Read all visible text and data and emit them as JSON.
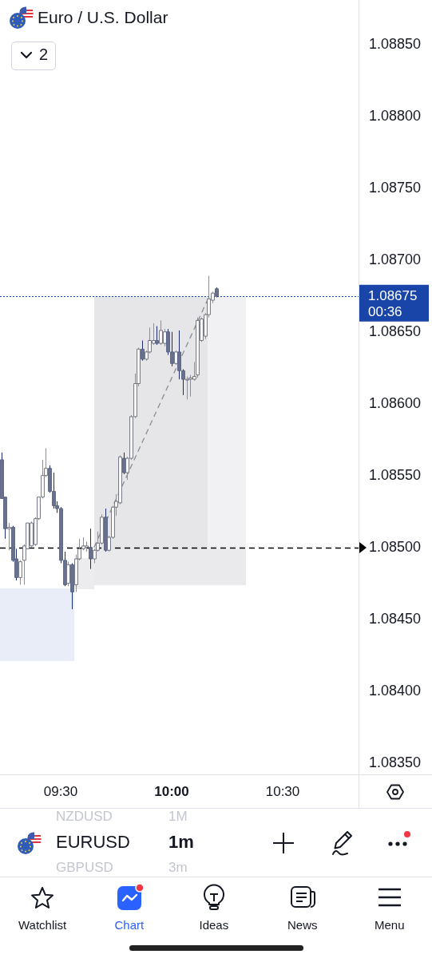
{
  "chart_data": {
    "type": "candlestick",
    "title": "Euro / U.S. Dollar",
    "x": [
      9.2333,
      9.25,
      9.2667,
      9.2833,
      9.3,
      9.3167,
      9.3333,
      9.35,
      9.3667,
      9.3833,
      9.4,
      9.4167,
      9.4333,
      9.45,
      9.4667,
      9.4833,
      9.5,
      9.5167,
      9.5333,
      9.55,
      9.5667,
      9.5833,
      9.6,
      9.6167,
      9.6333,
      9.65,
      9.6667,
      9.6833,
      9.7,
      9.7167,
      9.7333,
      9.75,
      9.7667,
      9.7833,
      9.8,
      9.8167,
      9.8333,
      9.85,
      9.8667,
      9.8833,
      9.9,
      9.9167,
      9.9333,
      9.95,
      9.9667,
      9.9833,
      10,
      10.0167,
      10.0333,
      10.05,
      10.0667,
      10.0833,
      10.1,
      10.1167,
      10.1333,
      10.15,
      10.1667,
      10.1833,
      10.2
    ],
    "ohlc": [
      [
        1.08561,
        1.08566,
        1.08534,
        1.08534
      ],
      [
        1.08535,
        1.08535,
        1.08506,
        1.08513
      ],
      [
        1.08513,
        1.08517,
        1.08498,
        1.08514
      ],
      [
        1.08514,
        1.08515,
        1.0849,
        1.08491
      ],
      [
        1.08492,
        1.08499,
        1.08477,
        1.08479
      ],
      [
        1.08479,
        1.08491,
        1.08474,
        1.0849
      ],
      [
        1.08491,
        1.08502,
        1.08474,
        1.08501
      ],
      [
        1.08499,
        1.08517,
        1.08499,
        1.08517
      ],
      [
        1.08501,
        1.08518,
        1.085,
        1.08517
      ],
      [
        1.08502,
        1.08521,
        1.08501,
        1.0852
      ],
      [
        1.0852,
        1.08535,
        1.08519,
        1.08535
      ],
      [
        1.08535,
        1.08561,
        1.08534,
        1.0855
      ],
      [
        1.0855,
        1.08569,
        1.08549,
        1.08555
      ],
      [
        1.08555,
        1.08557,
        1.08538,
        1.08539
      ],
      [
        1.08539,
        1.08552,
        1.08527,
        1.08529
      ],
      [
        1.08529,
        1.08532,
        1.08524,
        1.08527
      ],
      [
        1.08527,
        1.08528,
        1.08489,
        1.08491
      ],
      [
        1.08491,
        1.08497,
        1.08473,
        1.08474
      ],
      [
        1.08475,
        1.0849,
        1.08473,
        1.08488
      ],
      [
        1.08488,
        1.08489,
        1.08457,
        1.08469
      ],
      [
        1.08474,
        1.08495,
        1.08469,
        1.08492
      ],
      [
        1.08492,
        1.08506,
        1.08491,
        1.08499
      ],
      [
        1.08499,
        1.08507,
        1.08498,
        1.08501
      ],
      [
        1.085,
        1.08504,
        1.08497,
        1.08501
      ],
      [
        1.085,
        1.08513,
        1.08485,
        1.08492
      ],
      [
        1.08492,
        1.08499,
        1.08489,
        1.08498
      ],
      [
        1.08498,
        1.08511,
        1.08497,
        1.08503
      ],
      [
        1.08503,
        1.08523,
        1.08502,
        1.08521
      ],
      [
        1.08521,
        1.08527,
        1.08497,
        1.08498
      ],
      [
        1.08498,
        1.08508,
        1.08497,
        1.08507
      ],
      [
        1.08507,
        1.08529,
        1.08506,
        1.08528
      ],
      [
        1.08528,
        1.08537,
        1.08522,
        1.08532
      ],
      [
        1.08531,
        1.08564,
        1.0853,
        1.08563
      ],
      [
        1.08562,
        1.08566,
        1.08551,
        1.08552
      ],
      [
        1.08552,
        1.08563,
        1.08547,
        1.08562
      ],
      [
        1.08562,
        1.08592,
        1.08561,
        1.08591
      ],
      [
        1.08591,
        1.08621,
        1.0859,
        1.08614
      ],
      [
        1.08614,
        1.08639,
        1.08612,
        1.08638
      ],
      [
        1.08638,
        1.08644,
        1.0863,
        1.08631
      ],
      [
        1.08631,
        1.08637,
        1.0863,
        1.08636
      ],
      [
        1.08636,
        1.08653,
        1.08635,
        1.08644
      ],
      [
        1.08642,
        1.08656,
        1.08641,
        1.08644
      ],
      [
        1.08644,
        1.08654,
        1.08641,
        1.08642
      ],
      [
        1.08642,
        1.08658,
        1.08641,
        1.08651
      ],
      [
        1.08642,
        1.08652,
        1.0864,
        1.0865
      ],
      [
        1.0865,
        1.08652,
        1.08634,
        1.08636
      ],
      [
        1.08636,
        1.0865,
        1.08626,
        1.08628
      ],
      [
        1.08628,
        1.08637,
        1.08627,
        1.08636
      ],
      [
        1.08636,
        1.08651,
        1.08617,
        1.08623
      ],
      [
        1.08623,
        1.08624,
        1.08606,
        1.08617
      ],
      [
        1.08617,
        1.08619,
        1.08603,
        1.08617
      ],
      [
        1.08617,
        1.0862,
        1.08605,
        1.08618
      ],
      [
        1.08617,
        1.08629,
        1.08616,
        1.08619
      ],
      [
        1.0862,
        1.0866,
        1.08618,
        1.08658
      ],
      [
        1.08644,
        1.0866,
        1.08643,
        1.08659
      ],
      [
        1.08647,
        1.08663,
        1.08645,
        1.08662
      ],
      [
        1.08662,
        1.08689,
        1.0866,
        1.08673
      ],
      [
        1.08672,
        1.08678,
        1.0867,
        1.08677
      ],
      [
        1.0868,
        1.08681,
        1.08674,
        1.08675
      ]
    ],
    "series": [
      {
        "type": "line",
        "x": [
          9.65,
          10.1667
        ],
        "values": [
          1.085,
          1.08674
        ],
        "color": "#8a8d96",
        "line_style": "dashed"
      }
    ],
    "xlim": [
      9.2267,
      10.8417
    ],
    "xticks": [
      {
        "value": 9.5,
        "label": "09:30"
      },
      {
        "value": 10,
        "label": "10:00"
      },
      {
        "value": 10.5,
        "label": "10:30"
      }
    ],
    "ylim": [
      1.08342,
      1.08881
    ],
    "yticks": [
      {
        "value": 1.0835,
        "label": "1.08350"
      },
      {
        "value": 1.084,
        "label": "1.08400"
      },
      {
        "value": 1.0845,
        "label": "1.08450"
      },
      {
        "value": 1.085,
        "label": "1.08500"
      },
      {
        "value": 1.0855,
        "label": "1.08550"
      },
      {
        "value": 1.086,
        "label": "1.08600"
      },
      {
        "value": 1.0865,
        "label": "1.08650"
      },
      {
        "value": 1.087,
        "label": "1.08700"
      },
      {
        "value": 1.0875,
        "label": "1.08750"
      },
      {
        "value": 1.088,
        "label": "1.08800"
      },
      {
        "value": 1.0885,
        "label": "1.08850"
      }
    ],
    "ref_lines": [
      {
        "axis": "y",
        "value": 1.085,
        "color": "#000000",
        "line_style": "dashed"
      },
      {
        "axis": "y",
        "value": 1.08675,
        "label": "1.08675",
        "color": "#1a45a8",
        "line_style": "dotted"
      }
    ],
    "annotations": [
      "00:36",
      "2",
      "NZDUSD",
      "1M",
      "EURUSD",
      "1m",
      "GBPUSD",
      "3m",
      "Watchlist",
      "Chart",
      "Ideas",
      "News",
      "Menu"
    ]
  }
}
